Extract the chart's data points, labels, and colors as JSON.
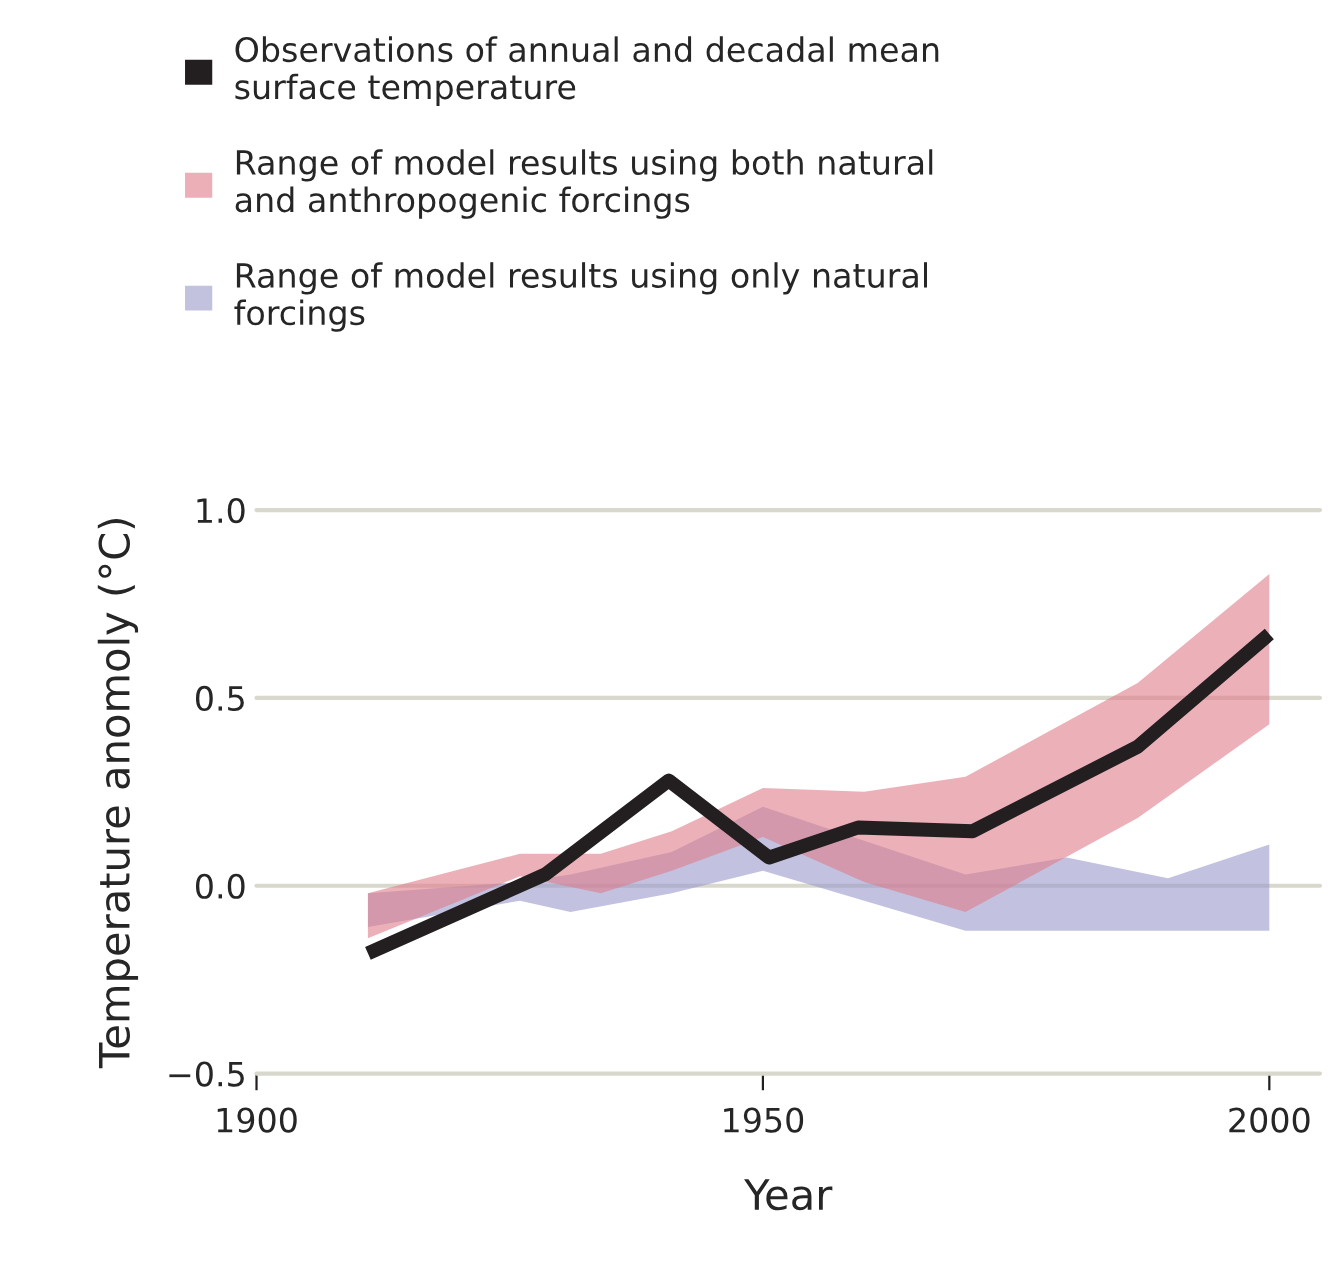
{
  "chart_data": {
    "type": "line",
    "xlabel": "Year",
    "ylabel": "Temperature anomoly (°C)",
    "xlim": [
      1900,
      2005
    ],
    "xticks": [
      1900,
      1950,
      2000
    ],
    "ylim": [
      -0.5,
      1.0
    ],
    "yticks": [
      {
        "value": -0.5,
        "label": "−0.5"
      },
      {
        "value": 0,
        "label": "0.0"
      },
      0.5,
      {
        "value": 1,
        "label": "1.0"
      }
    ],
    "grid": "y",
    "legend": "top",
    "line_style": "solid",
    "series": [
      {
        "name": "Range of model results using only natural forcings",
        "type": "line",
        "color": "#9a9acb",
        "x": [
          1911,
          1926,
          1931,
          1941,
          1950,
          1960,
          1970,
          1980,
          1990,
          2000
        ],
        "values": [
          null,
          null,
          null,
          null,
          null,
          null,
          null,
          null,
          null,
          null
        ],
        "lower": [
          -0.11,
          -0.04,
          -0.07,
          -0.02,
          0.04,
          -0.04,
          -0.12,
          -0.12,
          -0.12,
          -0.12
        ],
        "upper": [
          -0.02,
          0.01,
          0.03,
          0.09,
          0.21,
          0.12,
          0.03,
          0.075,
          0.02,
          0.11
        ]
      },
      {
        "name": "Range of model results using both natural and anthropogenic forcings",
        "type": "line",
        "color": "#e07b8a",
        "x": [
          1911,
          1926,
          1934,
          1941,
          1950,
          1960,
          1970,
          1987,
          2000
        ],
        "values": [
          null,
          null,
          null,
          null,
          null,
          null,
          null,
          null,
          null
        ],
        "lower": [
          -0.14,
          0.025,
          -0.02,
          0.04,
          0.13,
          0.01,
          -0.07,
          0.18,
          0.43
        ],
        "upper": [
          -0.02,
          0.085,
          0.085,
          0.145,
          0.26,
          0.25,
          0.29,
          0.54,
          0.83
        ]
      },
      {
        "name": "Observations of annual and decadal mean surface temperature",
        "type": "line",
        "color": "#231f20",
        "x": [
          1911,
          1928.5,
          1940.7,
          1950.6,
          1959.4,
          1970.7,
          1987,
          2000
        ],
        "values": [
          -0.18,
          0.03,
          0.28,
          0.075,
          0.155,
          0.145,
          0.37,
          0.67
        ]
      }
    ]
  }
}
